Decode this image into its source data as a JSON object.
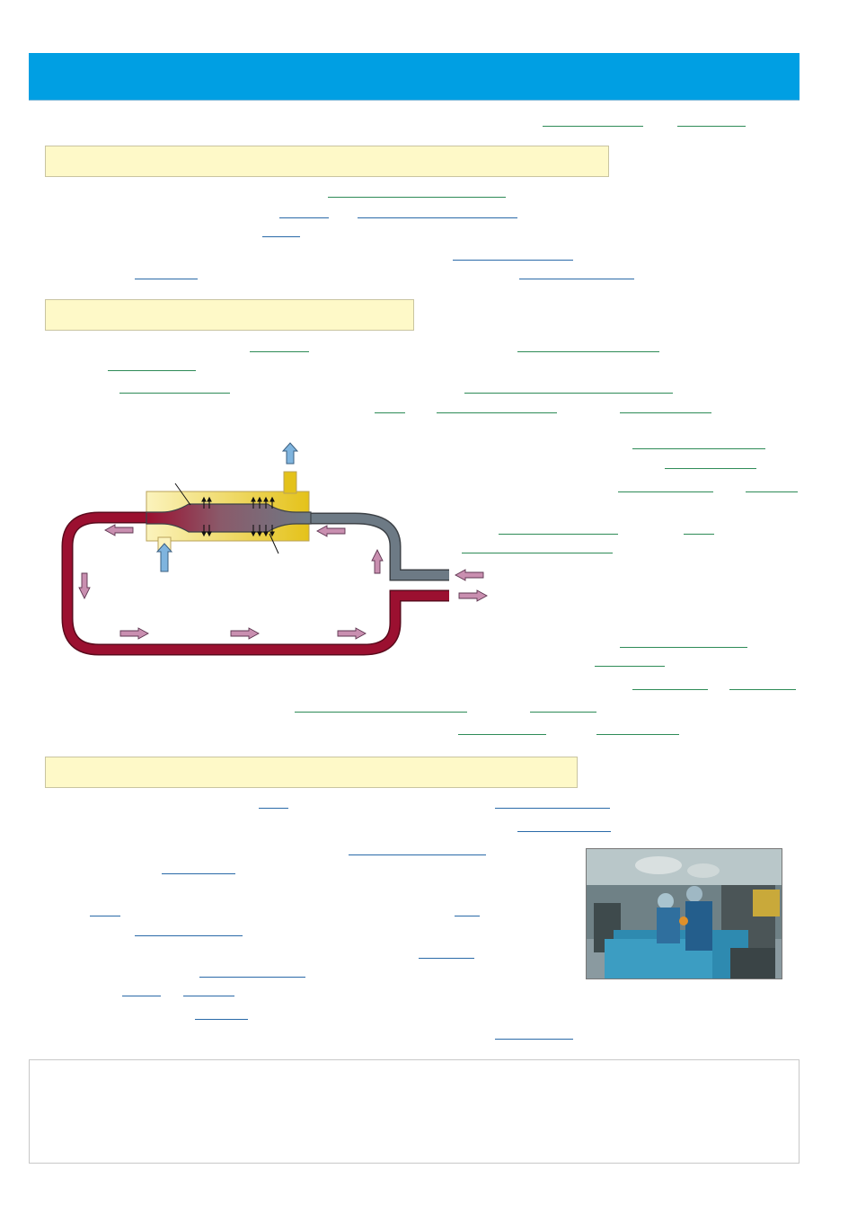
{
  "page": {
    "colors": {
      "banner": "#009fe3",
      "section_fill": "#fef9c8",
      "link_green": "#2e8b57",
      "link_blue": "#2a6aa8",
      "blood_oxygenated": "#9b1030",
      "blood_deoxygenated": "#6d7a85",
      "gas_chamber": "#e8c51a",
      "flow_arrow": "#c98fb0"
    },
    "banner": {
      "title": ""
    },
    "sections": [
      {
        "heading": ""
      },
      {
        "heading": ""
      },
      {
        "heading": ""
      }
    ],
    "diagram": {
      "icons": [
        "gas-out-arrow-icon",
        "gas-in-arrow-icon",
        "flow-arrow-icon",
        "gas-exchange-arrow-icon"
      ]
    },
    "photo": {
      "icon": "operating-room-photo"
    },
    "note": {
      "text": ""
    }
  }
}
